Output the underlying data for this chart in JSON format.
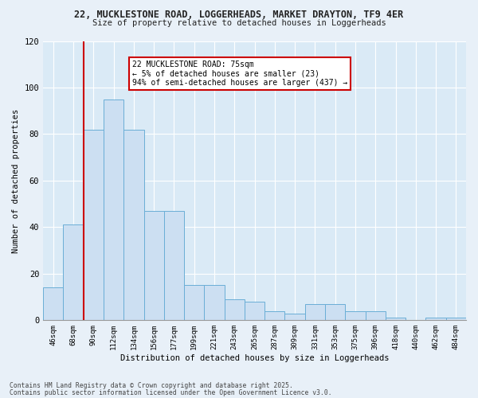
{
  "title1": "22, MUCKLESTONE ROAD, LOGGERHEADS, MARKET DRAYTON, TF9 4ER",
  "title2": "Size of property relative to detached houses in Loggerheads",
  "xlabel": "Distribution of detached houses by size in Loggerheads",
  "ylabel": "Number of detached properties",
  "categories": [
    "46sqm",
    "68sqm",
    "90sqm",
    "112sqm",
    "134sqm",
    "156sqm",
    "177sqm",
    "199sqm",
    "221sqm",
    "243sqm",
    "265sqm",
    "287sqm",
    "309sqm",
    "331sqm",
    "353sqm",
    "375sqm",
    "396sqm",
    "418sqm",
    "440sqm",
    "462sqm",
    "484sqm"
  ],
  "values": [
    14,
    41,
    82,
    95,
    82,
    47,
    47,
    15,
    15,
    9,
    8,
    4,
    3,
    7,
    7,
    4,
    4,
    1,
    0,
    1,
    1
  ],
  "bar_color": "#ccdff2",
  "bar_edge_color": "#6aaed6",
  "bg_color": "#daeaf6",
  "fig_bg_color": "#e8f0f8",
  "grid_color": "#ffffff",
  "vline_x": 1.5,
  "vline_color": "#cc0000",
  "annotation_text": "22 MUCKLESTONE ROAD: 75sqm\n← 5% of detached houses are smaller (23)\n94% of semi-detached houses are larger (437) →",
  "annotation_box_color": "#cc0000",
  "ylim": [
    0,
    120
  ],
  "yticks": [
    0,
    20,
    40,
    60,
    80,
    100,
    120
  ],
  "footer1": "Contains HM Land Registry data © Crown copyright and database right 2025.",
  "footer2": "Contains public sector information licensed under the Open Government Licence v3.0."
}
